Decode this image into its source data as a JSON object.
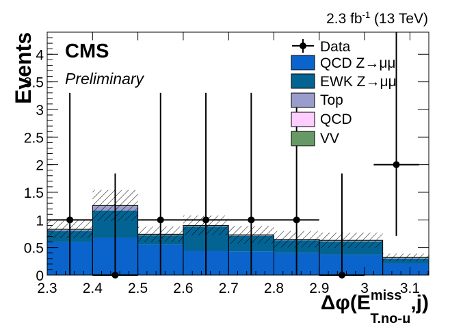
{
  "header": {
    "lumi": "2.3 fb",
    "lumi_sup": "-1",
    "energy": " (13 TeV)"
  },
  "cms_label": "CMS",
  "cms_sublabel": "Preliminary",
  "chart_data": {
    "type": "bar",
    "stacked": true,
    "xlabel": "Δφ(E",
    "xlabel_sup": "miss",
    "xlabel_sub": "T,no-μ",
    "xlabel_tail": ",j)",
    "ylabel": "Events",
    "xlim": [
      2.3,
      3.1416
    ],
    "ylim": [
      0,
      4.4
    ],
    "x_ticks": [
      2.3,
      2.4,
      2.5,
      2.6,
      2.7,
      2.8,
      2.9,
      3.0,
      3.1
    ],
    "x_tick_labels": [
      "2.3",
      "2.4",
      "2.5",
      "2.6",
      "2.7",
      "2.8",
      "2.9",
      "3",
      "3.1"
    ],
    "y_ticks": [
      0,
      0.5,
      1,
      1.5,
      2,
      2.5,
      3,
      3.5,
      4
    ],
    "y_tick_labels": [
      "0",
      "0.5",
      "1",
      "1.5",
      "2",
      "2.5",
      "3",
      "3.5",
      "4"
    ],
    "bin_edges": [
      2.3,
      2.4,
      2.5,
      2.6,
      2.7,
      2.8,
      2.9,
      3.04,
      3.1416
    ],
    "series": [
      {
        "name": "QCD Z→μμ",
        "color": "#0a64cc",
        "values": [
          0.6,
          0.67,
          0.55,
          0.44,
          0.43,
          0.4,
          0.37,
          0.21
        ]
      },
      {
        "name": "EWK Z→μμ",
        "color": "#036494",
        "values": [
          0.2,
          0.5,
          0.17,
          0.44,
          0.28,
          0.23,
          0.24,
          0.09
        ]
      },
      {
        "name": "Top",
        "color": "#9a9ccc",
        "values": [
          0.02,
          0.08,
          0.01,
          0.01,
          0.01,
          0.01,
          0.01,
          0.01
        ]
      },
      {
        "name": "QCD",
        "color": "#ffccff",
        "values": [
          0.0,
          0.0,
          0.0,
          0.0,
          0.0,
          0.0,
          0.0,
          0.0
        ]
      },
      {
        "name": "VV",
        "color": "#669966",
        "values": [
          0.01,
          0.01,
          0.01,
          0.01,
          0.01,
          0.01,
          0.01,
          0.01
        ]
      }
    ],
    "uncertainty": [
      0.16,
      0.28,
      0.14,
      0.18,
      0.16,
      0.15,
      0.14,
      0.07
    ],
    "data": {
      "name": "Data",
      "x": [
        2.35,
        2.45,
        2.55,
        2.65,
        2.75,
        2.85,
        2.95,
        3.07
      ],
      "xerr": [
        0.05,
        0.05,
        0.05,
        0.05,
        0.05,
        0.05,
        0.05,
        0.05
      ],
      "y": [
        1,
        0,
        1,
        1,
        1,
        1,
        0,
        2
      ],
      "yerr_up": [
        2.3,
        1.84,
        2.3,
        2.3,
        2.3,
        2.3,
        1.84,
        2.64
      ],
      "yerr_down": [
        1.0,
        0.0,
        1.0,
        1.0,
        1.0,
        1.0,
        0.0,
        1.29
      ]
    },
    "legend_position": "top-right",
    "grid": false
  }
}
